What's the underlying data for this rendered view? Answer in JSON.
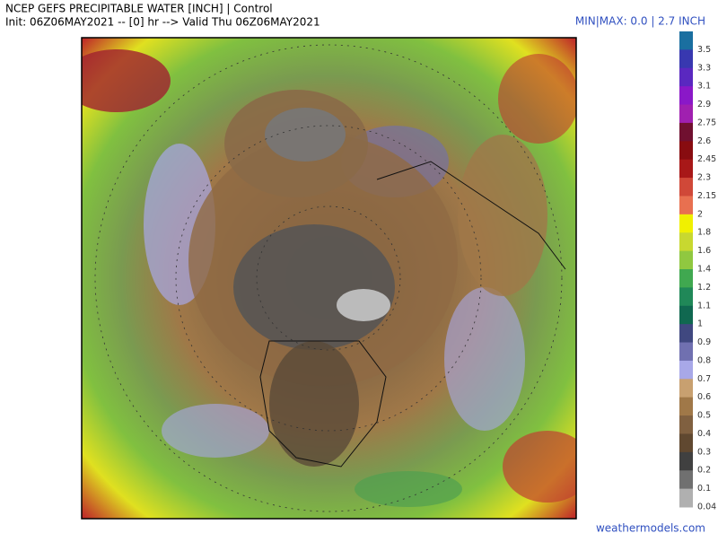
{
  "header": {
    "title": "NCEP GEFS PRECIPITABLE WATER [INCH] | Control",
    "subtitle": "Init: 06Z06MAY2021 -- [0] hr --> Valid Thu 06Z06MAY2021",
    "minmax": "MIN|MAX: 0.0 | 2.7 INCH"
  },
  "legend": {
    "entries": [
      {
        "label": "3.5",
        "color": "#1a6fa0"
      },
      {
        "label": "3.3",
        "color": "#3838b0"
      },
      {
        "label": "3.1",
        "color": "#5a28c0"
      },
      {
        "label": "2.9",
        "color": "#8a18c8"
      },
      {
        "label": "2.75",
        "color": "#a020b0"
      },
      {
        "label": "2.6",
        "color": "#701030"
      },
      {
        "label": "2.45",
        "color": "#880c10"
      },
      {
        "label": "2.3",
        "color": "#a81818"
      },
      {
        "label": "2.15",
        "color": "#d04838"
      },
      {
        "label": "2",
        "color": "#e87050"
      },
      {
        "label": "1.8",
        "color": "#f0f000"
      },
      {
        "label": "1.6",
        "color": "#c8d830"
      },
      {
        "label": "1.4",
        "color": "#90c840"
      },
      {
        "label": "1.2",
        "color": "#40a850"
      },
      {
        "label": "1.1",
        "color": "#208858"
      },
      {
        "label": "1",
        "color": "#106850"
      },
      {
        "label": "0.9",
        "color": "#404880"
      },
      {
        "label": "0.8",
        "color": "#7070b0"
      },
      {
        "label": "0.7",
        "color": "#a8a8e8"
      },
      {
        "label": "0.6",
        "color": "#c8a070"
      },
      {
        "label": "0.5",
        "color": "#a07848"
      },
      {
        "label": "0.4",
        "color": "#806040"
      },
      {
        "label": "0.3",
        "color": "#604830"
      },
      {
        "label": "0.2",
        "color": "#404040"
      },
      {
        "label": "0.1",
        "color": "#707070"
      },
      {
        "label": "0.04",
        "color": "#b0b0b0"
      }
    ]
  },
  "footer": {
    "credit": "weathermodels.com"
  }
}
